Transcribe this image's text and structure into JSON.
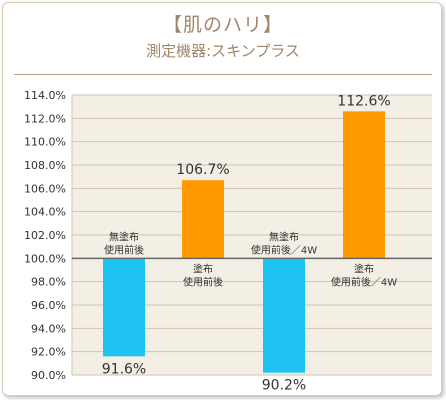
{
  "header": {
    "title": "【肌のハリ】",
    "subtitle": "測定機器:スキンプラス"
  },
  "colors": {
    "plot_bg": "#f3efe4",
    "grid": "#cfc5b3",
    "baseline": "#666666",
    "blue": "#1fc3f3",
    "orange": "#ff9a00",
    "title": "#a0876a",
    "text": "#333333"
  },
  "chart_data": {
    "type": "bar",
    "baseline": 100.0,
    "ylim": [
      90.0,
      114.0
    ],
    "yticks": [
      "90.0%",
      "92.0%",
      "94.0%",
      "96.0%",
      "98.0%",
      "100.0%",
      "102.0%",
      "104.0%",
      "106.0%",
      "108.0%",
      "110.0%",
      "112.0%",
      "114.0%"
    ],
    "ytick_values": [
      90,
      92,
      94,
      96,
      98,
      100,
      102,
      104,
      106,
      108,
      110,
      112,
      114
    ],
    "grid": true,
    "bars": [
      {
        "label_lines": [
          "無塗布",
          "使用前後"
        ],
        "value": 91.6,
        "value_label": "91.6%",
        "color": "#1fc3f3"
      },
      {
        "label_lines": [
          "塗布",
          "使用前後"
        ],
        "value": 106.7,
        "value_label": "106.7%",
        "color": "#ff9a00"
      },
      {
        "label_lines": [
          "無塗布",
          "使用前後／4W"
        ],
        "value": 90.2,
        "value_label": "90.2%",
        "color": "#1fc3f3"
      },
      {
        "label_lines": [
          "塗布",
          "使用前後／4W"
        ],
        "value": 112.6,
        "value_label": "112.6%",
        "color": "#ff9a00"
      }
    ]
  }
}
